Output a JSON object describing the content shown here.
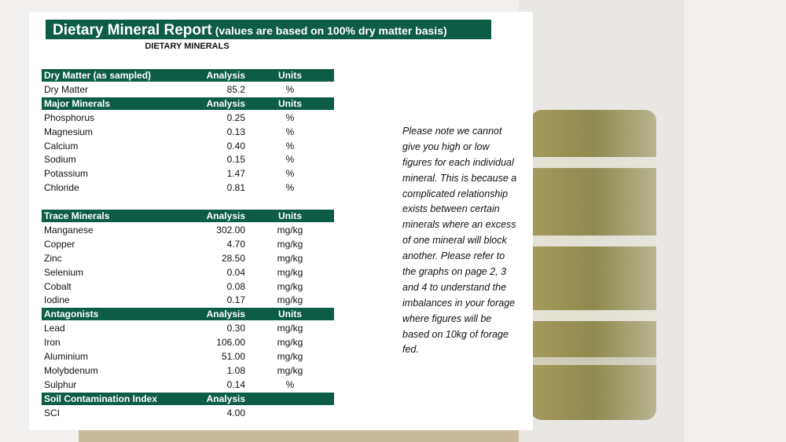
{
  "header": {
    "title": "Dietary Mineral Report",
    "title_note": "(values are based on 100% dry matter basis)",
    "subtitle": "DIETARY MINERALS"
  },
  "sections": [
    {
      "heading": [
        "Dry Matter (as sampled)",
        "Analysis",
        "Units"
      ],
      "rows": [
        [
          "Dry Matter",
          "85.2",
          "%"
        ]
      ]
    },
    {
      "heading": [
        "Major Minerals",
        "Analysis",
        "Units"
      ],
      "rows": [
        [
          "Phosphorus",
          "0.25",
          "%"
        ],
        [
          "Magnesium",
          "0.13",
          "%"
        ],
        [
          "Calcium",
          "0.40",
          "%"
        ],
        [
          "Sodium",
          "0.15",
          "%"
        ],
        [
          "Potassium",
          "1.47",
          "%"
        ],
        [
          "Chloride",
          "0.81",
          "%"
        ]
      ]
    },
    {
      "heading": [
        "Trace Minerals",
        "Analysis",
        "Units"
      ],
      "rows": [
        [
          "Manganese",
          "302.00",
          "mg/kg"
        ],
        [
          "Copper",
          "4.70",
          "mg/kg"
        ],
        [
          "Zinc",
          "28.50",
          "mg/kg"
        ],
        [
          "Selenium",
          "0.04",
          "mg/kg"
        ],
        [
          "Cobalt",
          "0.08",
          "mg/kg"
        ],
        [
          "Iodine",
          "0.17",
          "mg/kg"
        ]
      ]
    },
    {
      "heading": [
        "Antagonists",
        "Analysis",
        "Units"
      ],
      "rows": [
        [
          "Lead",
          "0.30",
          "mg/kg"
        ],
        [
          "Iron",
          "106.00",
          "mg/kg"
        ],
        [
          "Aluminium",
          "51.00",
          "mg/kg"
        ],
        [
          "Molybdenum",
          "1.08",
          "mg/kg"
        ],
        [
          "Sulphur",
          "0.14",
          "%"
        ]
      ]
    },
    {
      "heading": [
        "Soil Contamination Index",
        "Analysis"
      ],
      "rows": [
        [
          "SCI",
          "4.00"
        ]
      ]
    }
  ],
  "note": [
    "Please note we cannot",
    "give you high or low",
    "figures for each individual",
    "mineral.  This is because a",
    "complicated relationship",
    "exists between certain",
    "minerals where an excess",
    "of one mineral will block",
    "another.  Please refer to",
    "the graphs on page 2, 3",
    "and 4 to understand the",
    "imbalances in your forage",
    "where figures will be",
    "based on 10kg of forage",
    "fed."
  ]
}
